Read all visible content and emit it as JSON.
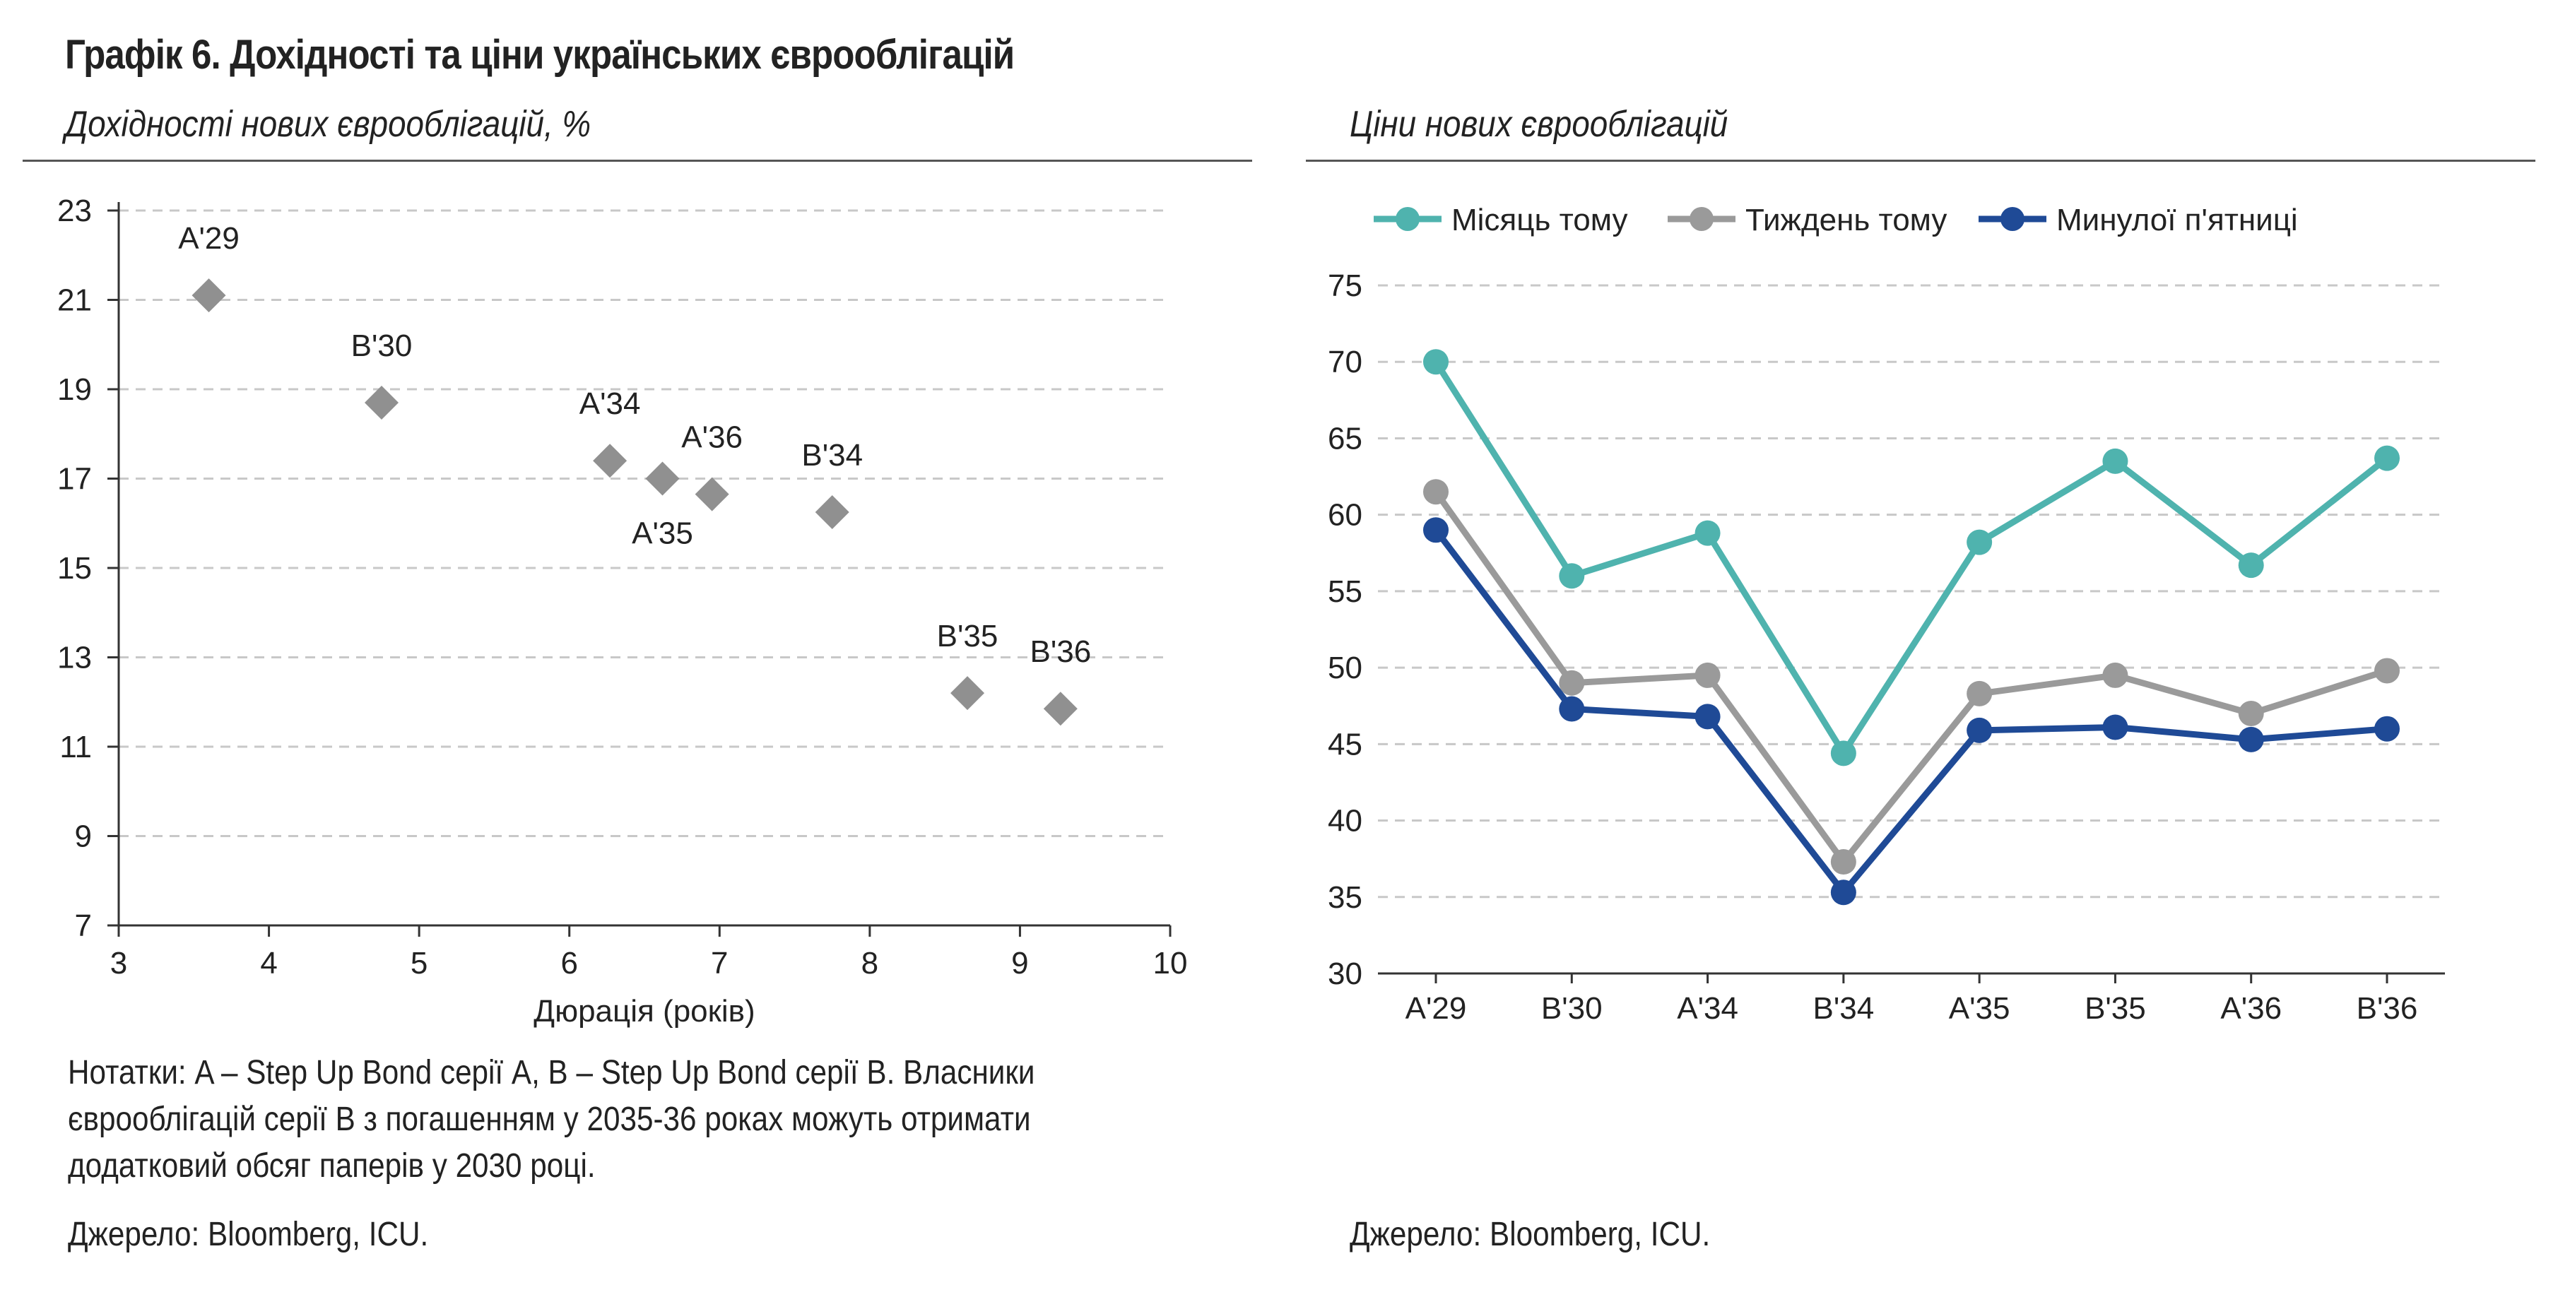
{
  "title": "Графік 6. Дохідності та ціни українських єврооблігацій",
  "notes": "Нотатки: A – Step Up Bond серії A, B – Step Up Bond серії B. Власники єврооблігацій серії B з погашенням у 2035-36 роках можуть отримати додатковий обсяг паперів у 2030 році.",
  "chart_data": [
    {
      "type": "scatter",
      "title": "Дохідності нових єврооблігацій, %",
      "xlabel": "Дюрація (років)",
      "ylabel": "",
      "xlim": [
        3,
        10
      ],
      "ylim": [
        7,
        23
      ],
      "xticks": [
        "3",
        "4",
        "5",
        "6",
        "7",
        "8",
        "9",
        "10"
      ],
      "yticks": [
        "7",
        "9",
        "11",
        "13",
        "15",
        "17",
        "19",
        "21",
        "23"
      ],
      "grid": "horizontal dashed",
      "marker": "diamond",
      "marker_color": "#909090",
      "points": [
        {
          "label": "A'29",
          "x": 3.6,
          "y": 21.1,
          "label_pos": "above"
        },
        {
          "label": "B'30",
          "x": 4.75,
          "y": 18.7,
          "label_pos": "above"
        },
        {
          "label": "A'34",
          "x": 6.27,
          "y": 17.4,
          "label_pos": "above"
        },
        {
          "label": "A'35",
          "x": 6.62,
          "y": 17.0,
          "label_pos": "below"
        },
        {
          "label": "A'36",
          "x": 6.95,
          "y": 16.65,
          "label_pos": "above"
        },
        {
          "label": "B'34",
          "x": 7.75,
          "y": 16.25,
          "label_pos": "above"
        },
        {
          "label": "B'35",
          "x": 8.65,
          "y": 12.2,
          "label_pos": "above"
        },
        {
          "label": "B'36",
          "x": 9.27,
          "y": 11.85,
          "label_pos": "above"
        }
      ],
      "source": "Джерело: Bloomberg, ICU."
    },
    {
      "type": "line",
      "title": "Ціни нових єврооблігацій",
      "xlabel": "",
      "ylabel": "",
      "ylim": [
        30,
        75
      ],
      "yticks": [
        "30",
        "35",
        "40",
        "45",
        "50",
        "55",
        "60",
        "65",
        "70",
        "75"
      ],
      "grid": "horizontal dashed",
      "legend_position": "top",
      "categories": [
        "A'29",
        "B'30",
        "A'34",
        "B'34",
        "A'35",
        "B'35",
        "A'36",
        "B'36"
      ],
      "series": [
        {
          "name": "Місяць тому",
          "color": "#4fb3ae",
          "values": [
            70.0,
            56.0,
            58.8,
            44.4,
            58.2,
            63.5,
            56.7,
            63.7
          ]
        },
        {
          "name": "Тиждень тому",
          "color": "#9a9a9a",
          "values": [
            61.5,
            49.0,
            49.5,
            37.3,
            48.3,
            49.5,
            47.0,
            49.8
          ]
        },
        {
          "name": "Минулої п'ятниці",
          "color": "#1f4a96",
          "values": [
            59.0,
            47.3,
            46.8,
            35.3,
            45.9,
            46.1,
            45.3,
            46.0
          ]
        }
      ],
      "source": "Джерело: Bloomberg, ICU."
    }
  ]
}
